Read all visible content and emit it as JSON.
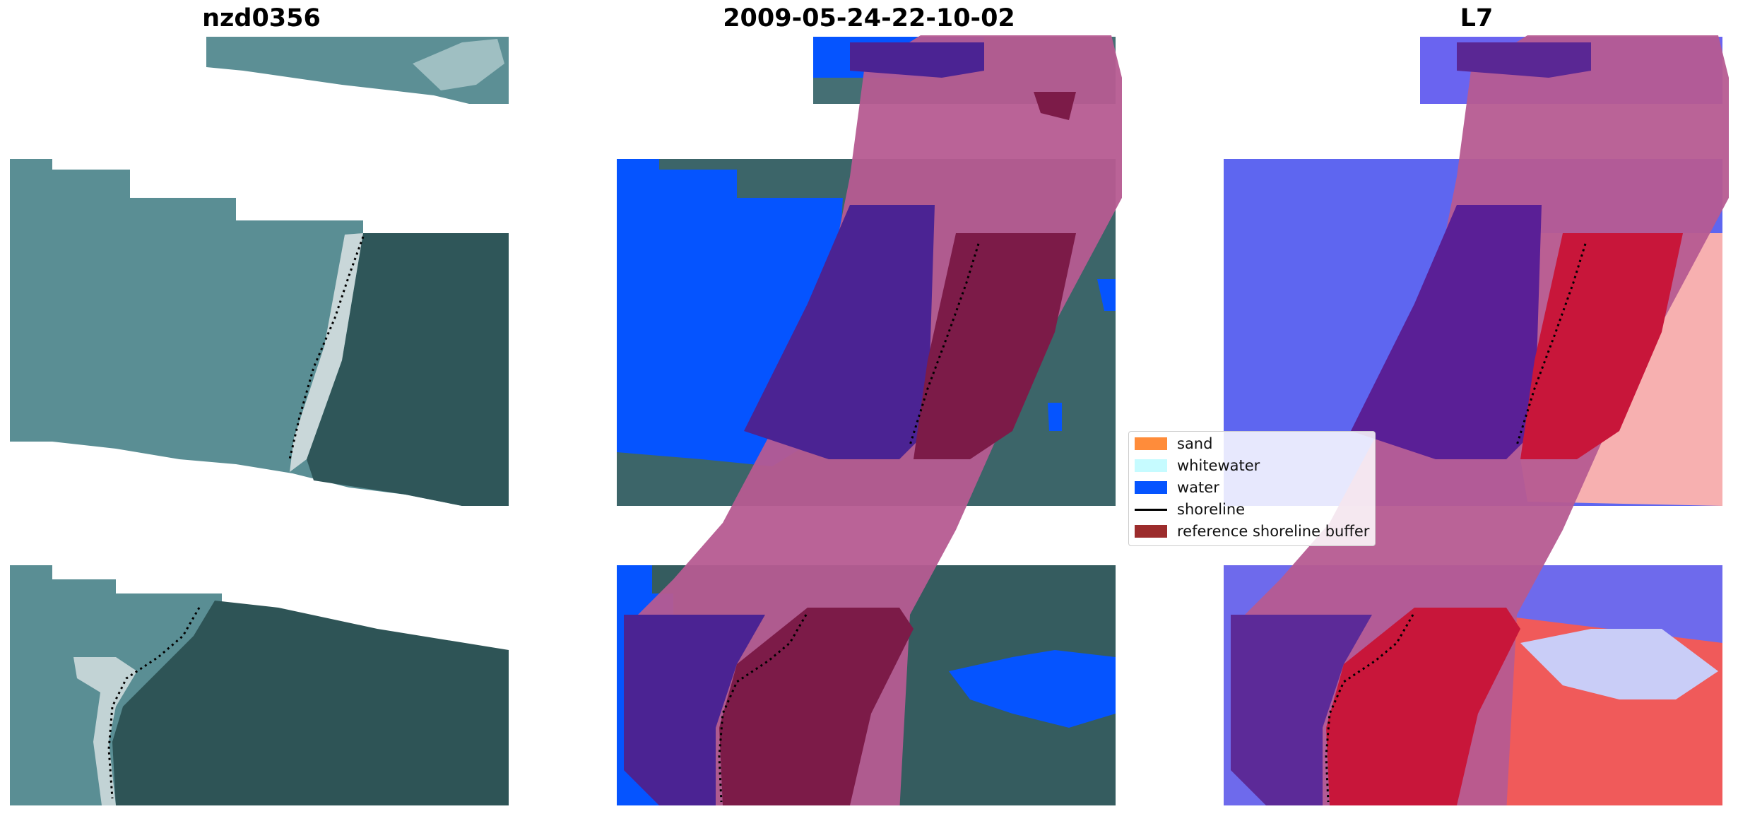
{
  "panels": [
    {
      "title": "nzd0356"
    },
    {
      "title": "2009-05-24-22-10-02"
    },
    {
      "title": "L7"
    }
  ],
  "legend": {
    "items": [
      {
        "label": "sand",
        "color": "#ff8c3a",
        "kind": "patch"
      },
      {
        "label": "whitewater",
        "color": "#c6fbff",
        "kind": "patch"
      },
      {
        "label": "water",
        "color": "#0554ff",
        "kind": "patch"
      },
      {
        "label": "shoreline",
        "color": "#000000",
        "kind": "line"
      },
      {
        "label": "reference shoreline buffer",
        "color": "#9c2c2c",
        "kind": "patch"
      }
    ]
  },
  "colors": {
    "sea_rgb": "#5a8e94",
    "land_rgb": "#2e5558",
    "water_class": "#0554ff",
    "buffer_pink": "#b65b91",
    "buffer_purple": "#4b2393",
    "buffer_maroon": "#7c1b48",
    "water_index_blue": "#5e66f0",
    "land_index_red": "#f05a5a",
    "land_index_crimson": "#c8163a"
  }
}
